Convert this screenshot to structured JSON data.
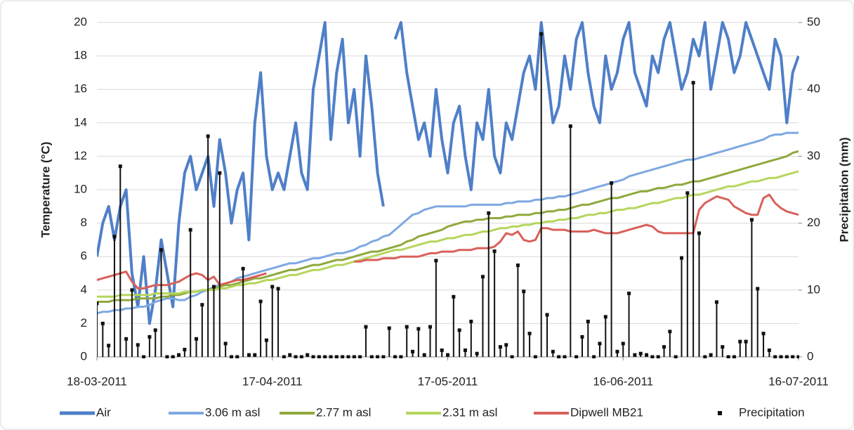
{
  "chart_data": {
    "type": "line",
    "x": [
      "18-03-2011",
      "19-03-2011",
      "20-03-2011",
      "21-03-2011",
      "22-03-2011",
      "23-03-2011",
      "24-03-2011",
      "25-03-2011",
      "26-03-2011",
      "27-03-2011",
      "28-03-2011",
      "29-03-2011",
      "30-03-2011",
      "31-03-2011",
      "01-04-2011",
      "02-04-2011",
      "03-04-2011",
      "04-04-2011",
      "05-04-2011",
      "06-04-2011",
      "07-04-2011",
      "08-04-2011",
      "09-04-2011",
      "10-04-2011",
      "11-04-2011",
      "12-04-2011",
      "13-04-2011",
      "14-04-2011",
      "15-04-2011",
      "16-04-2011",
      "17-04-2011",
      "18-04-2011",
      "19-04-2011",
      "20-04-2011",
      "21-04-2011",
      "22-04-2011",
      "23-04-2011",
      "24-04-2011",
      "25-04-2011",
      "26-04-2011",
      "27-04-2011",
      "28-04-2011",
      "29-04-2011",
      "30-04-2011",
      "01-05-2011",
      "02-05-2011",
      "03-05-2011",
      "04-05-2011",
      "05-05-2011",
      "06-05-2011",
      "07-05-2011",
      "08-05-2011",
      "09-05-2011",
      "10-05-2011",
      "11-05-2011",
      "12-05-2011",
      "13-05-2011",
      "14-05-2011",
      "15-05-2011",
      "16-05-2011",
      "17-05-2011",
      "18-05-2011",
      "19-05-2011",
      "20-05-2011",
      "21-05-2011",
      "22-05-2011",
      "23-05-2011",
      "24-05-2011",
      "25-05-2011",
      "26-05-2011",
      "27-05-2011",
      "28-05-2011",
      "29-05-2011",
      "30-05-2011",
      "31-05-2011",
      "01-06-2011",
      "02-06-2011",
      "03-06-2011",
      "04-06-2011",
      "05-06-2011",
      "06-06-2011",
      "07-06-2011",
      "08-06-2011",
      "09-06-2011",
      "10-06-2011",
      "11-06-2011",
      "12-06-2011",
      "13-06-2011",
      "14-06-2011",
      "15-06-2011",
      "16-06-2011",
      "17-06-2011",
      "18-06-2011",
      "19-06-2011",
      "20-06-2011",
      "21-06-2011",
      "22-06-2011",
      "23-06-2011",
      "24-06-2011",
      "25-06-2011",
      "26-06-2011",
      "27-06-2011",
      "28-06-2011",
      "29-06-2011",
      "30-06-2011",
      "01-07-2011",
      "02-07-2011",
      "03-07-2011",
      "04-07-2011",
      "05-07-2011",
      "06-07-2011",
      "07-07-2011",
      "08-07-2011",
      "09-07-2011",
      "10-07-2011",
      "11-07-2011",
      "12-07-2011",
      "13-07-2011",
      "14-07-2011",
      "15-07-2011",
      "16-07-2011"
    ],
    "xticks": [
      "18-03-2011",
      "17-04-2011",
      "17-05-2011",
      "16-06-2011",
      "16-07-2011"
    ],
    "ylabel": "Temperature (°C)",
    "y2label": "Precipitation (mm)",
    "ylim": [
      0,
      20
    ],
    "yticks": [
      0,
      2,
      4,
      6,
      8,
      10,
      12,
      14,
      16,
      18,
      20
    ],
    "y2lim": [
      0,
      50
    ],
    "y2ticks": [
      0,
      10,
      20,
      30,
      40,
      50
    ],
    "legend": "bottom",
    "series": [
      {
        "name": "Air",
        "color": "#4f7fc8",
        "width": 4,
        "values": [
          6,
          8,
          9,
          7,
          9,
          10,
          5,
          3,
          6,
          2,
          4,
          7,
          5,
          3,
          8,
          11,
          12,
          10,
          11,
          12,
          9,
          13,
          11,
          8,
          10,
          11,
          7,
          14,
          17,
          12,
          10,
          11,
          10,
          12,
          14,
          11,
          10,
          16,
          18,
          20,
          13,
          17,
          19,
          14,
          16,
          12,
          18,
          15,
          11,
          9,
          null,
          19,
          20,
          17,
          15,
          13,
          14,
          12,
          16,
          13,
          11,
          14,
          15,
          12,
          10,
          14,
          13,
          16,
          12,
          11,
          14,
          13,
          15,
          17,
          18,
          16,
          20,
          17,
          14,
          15,
          18,
          16,
          19,
          20,
          17,
          15,
          14,
          18,
          16,
          17,
          19,
          20,
          17,
          16,
          15,
          18,
          17,
          19,
          20,
          18,
          16,
          17,
          19,
          18,
          20,
          16,
          18,
          20,
          19,
          17,
          18,
          20,
          19,
          18,
          17,
          16,
          19,
          18,
          14,
          17,
          18
        ]
      },
      {
        "name": "3.06 m asl",
        "color": "#7ea8e2",
        "width": 3,
        "values": [
          2.6,
          2.7,
          2.7,
          2.8,
          2.8,
          2.9,
          2.9,
          3.0,
          3.0,
          3.1,
          3.3,
          3.4,
          3.5,
          3.5,
          3.4,
          3.4,
          3.6,
          3.7,
          3.9,
          4.0,
          4.2,
          4.3,
          4.4,
          4.5,
          4.7,
          4.8,
          4.9,
          5.0,
          5.1,
          5.2,
          5.3,
          5.4,
          5.5,
          5.6,
          5.6,
          5.7,
          5.8,
          5.9,
          5.9,
          6.0,
          6.1,
          6.2,
          6.2,
          6.3,
          6.4,
          6.6,
          6.7,
          6.9,
          7.0,
          7.2,
          7.3,
          7.6,
          7.9,
          8.2,
          8.5,
          8.6,
          8.8,
          8.9,
          9.0,
          9.0,
          9.0,
          9.0,
          9.0,
          9.0,
          9.1,
          9.1,
          9.1,
          9.1,
          9.1,
          9.1,
          9.2,
          9.2,
          9.3,
          9.3,
          9.3,
          9.4,
          9.4,
          9.5,
          9.5,
          9.6,
          9.6,
          9.7,
          9.8,
          9.9,
          10.0,
          10.1,
          10.2,
          10.3,
          10.4,
          10.5,
          10.6,
          10.8,
          10.9,
          11.0,
          11.1,
          11.2,
          11.3,
          11.4,
          11.5,
          11.6,
          11.7,
          11.8,
          11.8,
          11.9,
          12.0,
          12.1,
          12.2,
          12.3,
          12.4,
          12.5,
          12.6,
          12.7,
          12.8,
          12.9,
          13.0,
          13.2,
          13.3,
          13.3,
          13.4,
          13.4,
          13.4
        ]
      },
      {
        "name": "2.77 m asl",
        "color": "#8fa93c",
        "width": 3,
        "values": [
          3.3,
          3.3,
          3.3,
          3.4,
          3.4,
          3.4,
          3.4,
          3.5,
          3.5,
          3.5,
          3.5,
          3.6,
          3.6,
          3.7,
          3.7,
          3.8,
          3.9,
          3.9,
          4.0,
          4.0,
          4.1,
          4.2,
          4.3,
          4.3,
          4.4,
          4.5,
          4.6,
          4.7,
          4.7,
          4.8,
          4.9,
          5.0,
          5.1,
          5.2,
          5.2,
          5.3,
          5.4,
          5.5,
          5.5,
          5.6,
          5.7,
          5.8,
          5.8,
          5.9,
          6.0,
          6.1,
          6.2,
          6.3,
          6.3,
          6.4,
          6.5,
          6.6,
          6.7,
          6.9,
          7.0,
          7.2,
          7.3,
          7.4,
          7.5,
          7.6,
          7.8,
          7.9,
          8.0,
          8.1,
          8.1,
          8.2,
          8.2,
          8.3,
          8.3,
          8.3,
          8.4,
          8.4,
          8.5,
          8.5,
          8.5,
          8.6,
          8.6,
          8.7,
          8.7,
          8.8,
          8.8,
          8.9,
          9.0,
          9.1,
          9.1,
          9.2,
          9.3,
          9.4,
          9.5,
          9.5,
          9.6,
          9.7,
          9.8,
          9.9,
          9.9,
          10.0,
          10.1,
          10.1,
          10.2,
          10.3,
          10.3,
          10.4,
          10.5,
          10.5,
          10.6,
          10.7,
          10.8,
          10.9,
          11.0,
          11.1,
          11.2,
          11.3,
          11.4,
          11.5,
          11.6,
          11.7,
          11.8,
          11.9,
          12.0,
          12.2,
          12.3
        ]
      },
      {
        "name": "2.31 m asl",
        "color": "#b5d65c",
        "width": 3,
        "values": [
          3.6,
          3.6,
          3.6,
          3.6,
          3.7,
          3.7,
          3.7,
          3.7,
          3.7,
          3.7,
          3.8,
          3.8,
          3.8,
          3.8,
          3.8,
          3.9,
          3.9,
          3.9,
          4.0,
          4.0,
          4.0,
          4.1,
          4.1,
          4.2,
          4.3,
          4.3,
          4.4,
          4.4,
          4.5,
          4.6,
          4.6,
          4.7,
          4.8,
          4.9,
          4.9,
          5.0,
          5.1,
          5.2,
          5.2,
          5.3,
          5.4,
          5.5,
          5.5,
          5.6,
          5.7,
          5.8,
          5.9,
          6.0,
          6.1,
          6.2,
          6.3,
          6.4,
          6.4,
          6.5,
          6.6,
          6.7,
          6.8,
          6.9,
          6.9,
          7.0,
          7.1,
          7.1,
          7.2,
          7.3,
          7.3,
          7.4,
          7.5,
          7.5,
          7.6,
          7.7,
          7.7,
          7.8,
          7.8,
          7.9,
          7.9,
          8.0,
          8.0,
          8.1,
          8.1,
          8.2,
          8.2,
          8.3,
          8.3,
          8.4,
          8.5,
          8.5,
          8.6,
          8.6,
          8.7,
          8.8,
          8.8,
          8.9,
          8.9,
          9.0,
          9.1,
          9.2,
          9.2,
          9.3,
          9.4,
          9.5,
          9.5,
          9.6,
          9.7,
          9.7,
          9.8,
          9.9,
          10.0,
          10.1,
          10.2,
          10.2,
          10.3,
          10.4,
          10.5,
          10.5,
          10.6,
          10.7,
          10.7,
          10.8,
          10.9,
          11.0,
          11.1
        ]
      },
      {
        "name": "Dipwell MB21",
        "color": "#d9605a",
        "width": 3,
        "values": [
          4.6,
          4.7,
          4.8,
          4.9,
          5.0,
          5.1,
          4.5,
          4.1,
          4.1,
          4.2,
          4.3,
          4.3,
          4.3,
          4.4,
          4.5,
          4.7,
          4.9,
          5.0,
          4.9,
          4.6,
          4.8,
          4.3,
          4.4,
          4.5,
          4.6,
          4.6,
          4.7,
          4.8,
          4.9,
          5.0,
          null,
          null,
          null,
          null,
          null,
          null,
          null,
          null,
          null,
          null,
          null,
          null,
          null,
          null,
          5.7,
          5.7,
          5.8,
          5.8,
          5.8,
          5.9,
          5.9,
          5.9,
          6.0,
          6.0,
          6.0,
          6.0,
          6.1,
          6.2,
          6.2,
          6.3,
          6.3,
          6.3,
          6.4,
          6.4,
          6.4,
          6.5,
          6.5,
          6.5,
          6.6,
          6.9,
          7.4,
          7.3,
          7.5,
          7.0,
          6.9,
          7.0,
          7.7,
          7.7,
          7.6,
          7.6,
          7.6,
          7.5,
          7.5,
          7.5,
          7.5,
          7.6,
          7.5,
          7.4,
          7.4,
          7.4,
          7.5,
          7.6,
          7.7,
          7.8,
          7.9,
          7.8,
          7.5,
          7.4,
          7.4,
          7.4,
          7.4,
          7.4,
          7.4,
          8.8,
          9.2,
          9.4,
          9.6,
          9.5,
          9.4,
          9.0,
          8.8,
          8.6,
          8.5,
          8.5,
          9.5,
          9.7,
          9.2,
          8.9,
          8.7,
          8.6,
          8.5
        ]
      },
      {
        "name": "Precipitation",
        "color": "#111111",
        "axis": "y2",
        "type": "stem",
        "values": [
          8,
          5,
          1.7,
          18,
          28.5,
          2.7,
          10,
          1.8,
          0,
          3,
          4,
          16,
          0,
          0,
          0.3,
          1.1,
          19,
          2.7,
          7.8,
          33,
          10.5,
          27.5,
          2,
          0,
          0,
          13.2,
          0.3,
          0.3,
          8.3,
          2.5,
          10.5,
          10.2,
          0,
          0.3,
          0,
          0,
          0.3,
          0,
          0,
          0,
          0,
          0,
          0,
          0,
          0,
          0,
          4.5,
          0,
          0,
          0,
          4.3,
          0,
          0,
          4.5,
          0.8,
          4.2,
          0.3,
          4.5,
          14.4,
          1,
          0.3,
          9,
          4,
          1,
          5.3,
          0.5,
          12,
          21.5,
          15.8,
          1.5,
          1.8,
          0,
          13.7,
          9.8,
          3.5,
          0,
          48.3,
          6.3,
          0.8,
          0,
          0,
          34.5,
          0,
          3,
          5.3,
          0,
          2,
          6,
          26,
          0.8,
          2,
          9.5,
          0.3,
          0.5,
          0.3,
          0,
          0,
          1.5,
          3.8,
          0,
          14.8,
          24.5,
          41,
          18.5,
          0,
          0.3,
          8.2,
          1.5,
          0,
          0,
          2.3,
          2.3,
          20.5,
          10.2,
          3.5,
          1,
          0,
          0,
          0,
          0,
          0
        ]
      }
    ]
  }
}
